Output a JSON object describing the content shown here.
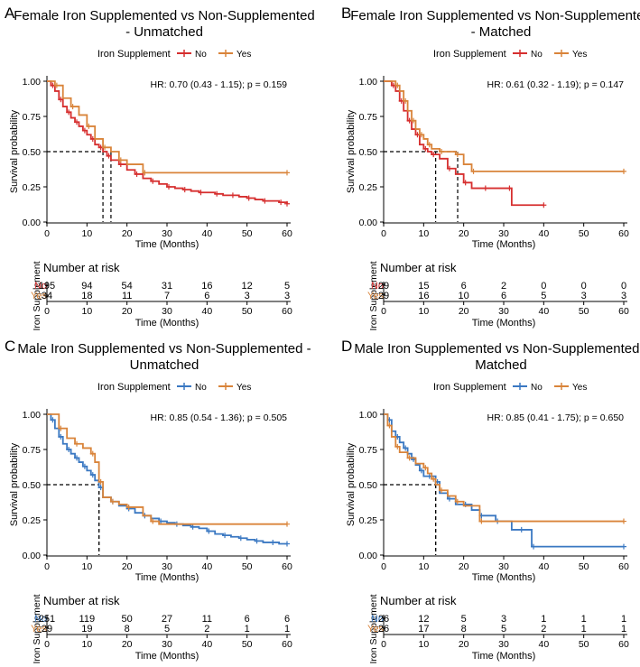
{
  "colors": {
    "no_female": "#d62f2f",
    "no_male": "#3a78c2",
    "yes": "#d9843a",
    "axis": "#000000",
    "text": "#000000"
  },
  "chart_data": [
    {
      "panel": "A",
      "type": "line",
      "title": [
        "Female Iron Supplemented vs Non-Supplemented",
        "- Unmatched"
      ],
      "legend_title": "Iron Supplement",
      "series": [
        {
          "name": "No",
          "color": "#d62f2f",
          "x": [
            0,
            1,
            2,
            3,
            4,
            5,
            6,
            7,
            8,
            9,
            10,
            11,
            12,
            13,
            14,
            15,
            16,
            18,
            20,
            22,
            24,
            26,
            28,
            30,
            32,
            34,
            36,
            38,
            40,
            42,
            44,
            46,
            48,
            50,
            52,
            54,
            56,
            58,
            60
          ],
          "y": [
            1.0,
            0.97,
            0.93,
            0.87,
            0.82,
            0.78,
            0.74,
            0.71,
            0.68,
            0.65,
            0.62,
            0.59,
            0.55,
            0.53,
            0.5,
            0.47,
            0.44,
            0.41,
            0.37,
            0.34,
            0.31,
            0.29,
            0.27,
            0.25,
            0.24,
            0.23,
            0.22,
            0.21,
            0.21,
            0.2,
            0.19,
            0.19,
            0.18,
            0.17,
            0.16,
            0.15,
            0.15,
            0.14,
            0.13
          ]
        },
        {
          "name": "Yes",
          "color": "#d9843a",
          "x": [
            0,
            2,
            4,
            6,
            8,
            10,
            12,
            14,
            16,
            18,
            20,
            24,
            60
          ],
          "y": [
            1.0,
            0.97,
            0.88,
            0.82,
            0.76,
            0.68,
            0.59,
            0.53,
            0.5,
            0.44,
            0.41,
            0.35,
            0.35
          ]
        }
      ],
      "median": [
        14,
        16
      ],
      "hr_text": "HR: 0.70 (0.43 - 1.15); p = 0.159",
      "xlabel": "Time (Months)",
      "ylabel": "Survival probability",
      "xlim": [
        0,
        60
      ],
      "ylim": [
        0,
        1
      ],
      "xticks": [
        "0",
        "10",
        "20",
        "30",
        "40",
        "50",
        "60"
      ],
      "yticks": [
        "0.00",
        "0.25",
        "0.50",
        "0.75",
        "1.00"
      ],
      "risk_title": "Number at risk",
      "risk_ylabel": "Iron Supplement",
      "risk_rows": [
        {
          "label": "No",
          "values": [
            "195",
            "94",
            "54",
            "31",
            "16",
            "12",
            "5"
          ]
        },
        {
          "label": "Yes",
          "values": [
            "34",
            "18",
            "11",
            "7",
            "6",
            "3",
            "3"
          ]
        }
      ]
    },
    {
      "panel": "B",
      "type": "line",
      "title": [
        "Female Iron Supplemented vs Non-Supplemented",
        "- Matched"
      ],
      "legend_title": "Iron Supplement",
      "series": [
        {
          "name": "No",
          "color": "#d62f2f",
          "x": [
            0,
            2,
            3,
            4,
            5,
            6,
            7,
            8,
            9,
            10,
            11,
            12,
            14,
            16,
            18,
            20,
            22,
            25,
            28,
            31,
            32,
            40
          ],
          "y": [
            1.0,
            0.97,
            0.93,
            0.86,
            0.79,
            0.72,
            0.66,
            0.62,
            0.55,
            0.52,
            0.5,
            0.48,
            0.45,
            0.38,
            0.34,
            0.28,
            0.24,
            0.24,
            0.24,
            0.24,
            0.12,
            0.12
          ]
        },
        {
          "name": "Yes",
          "color": "#d9843a",
          "x": [
            0,
            3,
            4,
            5,
            6,
            7,
            8,
            9,
            10,
            11,
            12,
            14,
            16,
            18,
            20,
            22,
            60
          ],
          "y": [
            1.0,
            0.97,
            0.93,
            0.86,
            0.79,
            0.72,
            0.66,
            0.62,
            0.59,
            0.55,
            0.52,
            0.5,
            0.5,
            0.48,
            0.41,
            0.36,
            0.36
          ]
        }
      ],
      "median": [
        13,
        18.5
      ],
      "hr_text": "HR: 0.61 (0.32 - 1.19); p = 0.147",
      "xlabel": "Time (Months)",
      "ylabel": "Survival probability",
      "xlim": [
        0,
        60
      ],
      "ylim": [
        0,
        1
      ],
      "xticks": [
        "0",
        "10",
        "20",
        "30",
        "40",
        "50",
        "60"
      ],
      "yticks": [
        "0.00",
        "0.25",
        "0.50",
        "0.75",
        "1.00"
      ],
      "risk_title": "Number at risk",
      "risk_ylabel": "Iron Supplement",
      "risk_rows": [
        {
          "label": "No",
          "values": [
            "29",
            "15",
            "6",
            "2",
            "0",
            "0",
            "0"
          ]
        },
        {
          "label": "Yes",
          "values": [
            "29",
            "16",
            "10",
            "6",
            "5",
            "3",
            "3"
          ]
        }
      ]
    },
    {
      "panel": "C",
      "type": "line",
      "title": [
        "Male Iron Supplemented vs Non-Supplemented -",
        "Unmatched"
      ],
      "legend_title": "Iron Supplement",
      "series": [
        {
          "name": "No",
          "color": "#3a78c2",
          "x": [
            0,
            1,
            2,
            3,
            4,
            5,
            6,
            7,
            8,
            9,
            10,
            11,
            12,
            13,
            14,
            16,
            18,
            20,
            22,
            24,
            26,
            28,
            30,
            32,
            34,
            36,
            38,
            40,
            42,
            44,
            46,
            48,
            50,
            52,
            54,
            56,
            58,
            60
          ],
          "y": [
            1.0,
            0.96,
            0.9,
            0.84,
            0.79,
            0.75,
            0.72,
            0.69,
            0.66,
            0.63,
            0.6,
            0.57,
            0.53,
            0.48,
            0.41,
            0.38,
            0.35,
            0.33,
            0.3,
            0.28,
            0.26,
            0.24,
            0.23,
            0.22,
            0.21,
            0.2,
            0.19,
            0.17,
            0.15,
            0.14,
            0.13,
            0.12,
            0.11,
            0.1,
            0.09,
            0.09,
            0.08,
            0.08
          ]
        },
        {
          "name": "Yes",
          "color": "#d9843a",
          "x": [
            0,
            3,
            5,
            7,
            9,
            11,
            12,
            13,
            14,
            16,
            18,
            20,
            24,
            26,
            28,
            60
          ],
          "y": [
            1.0,
            0.9,
            0.83,
            0.79,
            0.76,
            0.72,
            0.66,
            0.52,
            0.41,
            0.38,
            0.36,
            0.34,
            0.28,
            0.24,
            0.22,
            0.22
          ]
        }
      ],
      "median": [
        13,
        13
      ],
      "hr_text": "HR: 0.85 (0.54 - 1.36); p = 0.505",
      "xlabel": "Time (Months)",
      "ylabel": "Survival probability",
      "xlim": [
        0,
        60
      ],
      "ylim": [
        0,
        1
      ],
      "xticks": [
        "0",
        "10",
        "20",
        "30",
        "40",
        "50",
        "60"
      ],
      "yticks": [
        "0.00",
        "0.25",
        "0.50",
        "0.75",
        "1.00"
      ],
      "risk_title": "Number at risk",
      "risk_ylabel": "Iron Supplement",
      "risk_rows": [
        {
          "label": "No",
          "values": [
            "251",
            "119",
            "50",
            "27",
            "11",
            "6",
            "6"
          ]
        },
        {
          "label": "Yes",
          "values": [
            "29",
            "19",
            "8",
            "5",
            "2",
            "1",
            "1"
          ]
        }
      ]
    },
    {
      "panel": "D",
      "type": "line",
      "title": [
        "Male Iron Supplemented vs Non-Supplemented -",
        "Matched"
      ],
      "legend_title": "Iron Supplement",
      "series": [
        {
          "name": "No",
          "color": "#3a78c2",
          "x": [
            0,
            1,
            2,
            3,
            4,
            5,
            6,
            7,
            8,
            9,
            10,
            11,
            12,
            13,
            14,
            16,
            18,
            20,
            22,
            24,
            26,
            28,
            32,
            34,
            36,
            37,
            60
          ],
          "y": [
            1.0,
            0.96,
            0.88,
            0.84,
            0.8,
            0.76,
            0.72,
            0.68,
            0.64,
            0.6,
            0.56,
            0.56,
            0.56,
            0.52,
            0.44,
            0.4,
            0.36,
            0.36,
            0.32,
            0.28,
            0.28,
            0.24,
            0.18,
            0.18,
            0.18,
            0.06,
            0.06
          ]
        },
        {
          "name": "Yes",
          "color": "#d9843a",
          "x": [
            0,
            1,
            2,
            3,
            4,
            6,
            8,
            10,
            11,
            12,
            13,
            14,
            16,
            18,
            20,
            24,
            60
          ],
          "y": [
            1.0,
            0.92,
            0.84,
            0.77,
            0.73,
            0.69,
            0.65,
            0.62,
            0.58,
            0.54,
            0.5,
            0.46,
            0.42,
            0.38,
            0.35,
            0.24,
            0.24
          ]
        }
      ],
      "median": [
        13,
        13
      ],
      "hr_text": "HR: 0.85 (0.41 - 1.75); p = 0.650",
      "xlabel": "Time (Months)",
      "ylabel": "Survival probability",
      "xlim": [
        0,
        60
      ],
      "ylim": [
        0,
        1
      ],
      "xticks": [
        "0",
        "10",
        "20",
        "30",
        "40",
        "50",
        "60"
      ],
      "yticks": [
        "0.00",
        "0.25",
        "0.50",
        "0.75",
        "1.00"
      ],
      "risk_title": "Number at risk",
      "risk_ylabel": "Iron Supplement",
      "risk_rows": [
        {
          "label": "No",
          "values": [
            "26",
            "12",
            "5",
            "3",
            "1",
            "1",
            "1"
          ]
        },
        {
          "label": "Yes",
          "values": [
            "26",
            "17",
            "8",
            "5",
            "2",
            "1",
            "1"
          ]
        }
      ]
    }
  ]
}
